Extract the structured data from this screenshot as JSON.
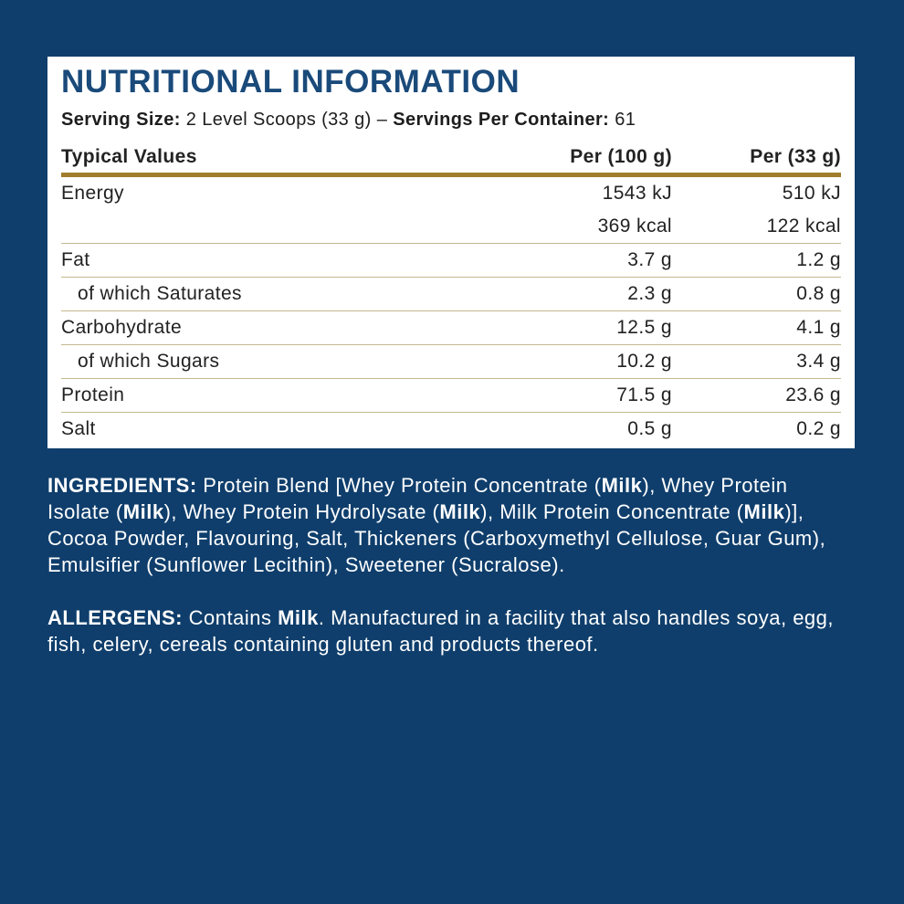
{
  "title": "NUTRITIONAL INFORMATION",
  "serving": {
    "size_label": "Serving Size:",
    "size": "2 Level Scoops (33 g)",
    "separator": "–",
    "servings_label": "Servings Per Container:",
    "servings": "61"
  },
  "table": {
    "header": [
      "Typical Values",
      "Per (100 g)",
      "Per (33 g)"
    ],
    "rows": [
      {
        "label": "Energy",
        "per_100g": [
          "1543 kJ",
          "369 kcal"
        ],
        "per_serving": [
          "510 kJ",
          "122 kcal"
        ],
        "sub": false
      },
      {
        "label": "Fat",
        "per_100g": [
          "3.7 g"
        ],
        "per_serving": [
          "1.2 g"
        ],
        "sub": false
      },
      {
        "label": "of which Saturates",
        "per_100g": [
          "2.3 g"
        ],
        "per_serving": [
          "0.8 g"
        ],
        "sub": true
      },
      {
        "label": "Carbohydrate",
        "per_100g": [
          "12.5 g"
        ],
        "per_serving": [
          "4.1 g"
        ],
        "sub": false
      },
      {
        "label": "of which Sugars",
        "per_100g": [
          "10.2 g"
        ],
        "per_serving": [
          "3.4 g"
        ],
        "sub": true
      },
      {
        "label": "Protein",
        "per_100g": [
          "71.5 g"
        ],
        "per_serving": [
          "23.6 g"
        ],
        "sub": false
      },
      {
        "label": "Salt",
        "per_100g": [
          "0.5 g"
        ],
        "per_serving": [
          "0.2 g"
        ],
        "sub": false
      }
    ]
  },
  "ingredients": [
    {
      "text": "INGREDIENTS:",
      "bold": true
    },
    {
      "text": " Protein Blend [Whey Protein Concentrate (",
      "bold": false
    },
    {
      "text": "Milk",
      "bold": true
    },
    {
      "text": "), Whey Protein Isolate (",
      "bold": false
    },
    {
      "text": "Milk",
      "bold": true
    },
    {
      "text": "), Whey Protein Hydrolysate (",
      "bold": false
    },
    {
      "text": "Milk",
      "bold": true
    },
    {
      "text": "), Milk Protein Concentrate (",
      "bold": false
    },
    {
      "text": "Milk",
      "bold": true
    },
    {
      "text": ")], Cocoa Powder, Flavouring, Salt, Thickeners (Carboxymethyl Cellulose, Guar Gum), Emulsifier (Sunflower Lecithin), Sweetener (Sucralose).",
      "bold": false
    }
  ],
  "allergens": [
    {
      "text": "ALLERGENS:",
      "bold": true
    },
    {
      "text": " Contains ",
      "bold": false
    },
    {
      "text": "Milk",
      "bold": true
    },
    {
      "text": ". Manufactured in a facility that also handles soya, egg, fish, celery, cereals containing gluten and products thereof.",
      "bold": false
    }
  ]
}
